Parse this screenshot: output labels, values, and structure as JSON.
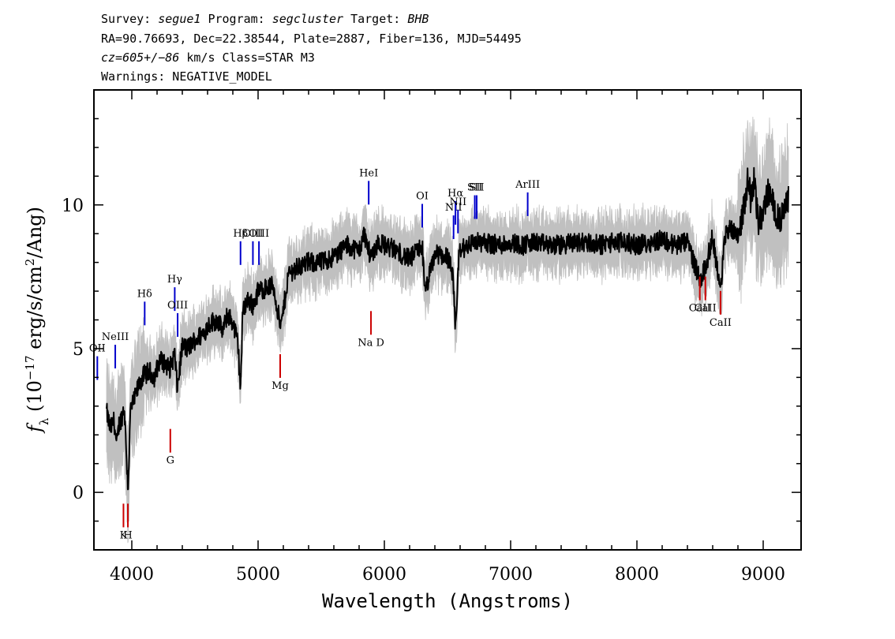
{
  "header": {
    "line1": [
      {
        "t": "Survey: ",
        "i": false
      },
      {
        "t": "segue1",
        "i": true
      },
      {
        "t": " Program: ",
        "i": false
      },
      {
        "t": "segcluster",
        "i": true
      },
      {
        "t": " Target: ",
        "i": false
      },
      {
        "t": "BHB",
        "i": true
      }
    ],
    "line2": "RA=90.76693, Dec=22.38544, Plate=2887, Fiber=136, MJD=54495",
    "line3": [
      {
        "t": "cz=605+/−86",
        "i": true
      },
      {
        "t": " km/s Class=STAR M3",
        "i": false
      }
    ],
    "line4": "Warnings: NEGATIVE_MODEL"
  },
  "chart_data": {
    "type": "line",
    "xlabel": "Wavelength (Angstroms)",
    "ylabel_parts": [
      "f",
      "λ",
      " (10",
      "−17",
      " erg/s/cm",
      "2",
      "/Ang)"
    ],
    "xlim": [
      3700,
      9300
    ],
    "ylim": [
      -2,
      14
    ],
    "xticks": [
      4000,
      5000,
      6000,
      7000,
      8000,
      9000
    ],
    "yticks": [
      0,
      5,
      10
    ],
    "grid": false,
    "colors": {
      "flux": "#000000",
      "noise_band": "#c0c0c0",
      "emission": "#0000cc",
      "absorption": "#cc0000"
    },
    "series": [
      {
        "role": "smoothed-flux",
        "x": [
          3800,
          3830,
          3860,
          3880,
          3900,
          3920,
          3940,
          3960,
          3970,
          3990,
          4020,
          4060,
          4100,
          4140,
          4180,
          4220,
          4260,
          4300,
          4340,
          4360,
          4400,
          4440,
          4500,
          4560,
          4620,
          4680,
          4720,
          4760,
          4800,
          4840,
          4861,
          4880,
          4920,
          4960,
          5000,
          5060,
          5120,
          5180,
          5240,
          5300,
          5400,
          5500,
          5600,
          5700,
          5800,
          5840,
          5890,
          5950,
          6000,
          6100,
          6200,
          6300,
          6320,
          6400,
          6500,
          6540,
          6563,
          6590,
          6650,
          6700,
          6800,
          6900,
          7000,
          7100,
          7200,
          7300,
          7400,
          7500,
          7600,
          7700,
          7800,
          7900,
          8000,
          8100,
          8200,
          8300,
          8400,
          8498,
          8542,
          8600,
          8662,
          8700,
          8750,
          8800,
          8830,
          8860,
          8880,
          8900,
          8930,
          8960,
          9000,
          9040,
          9080,
          9120,
          9160,
          9200
        ],
        "y": [
          2.8,
          2.2,
          2.5,
          1.6,
          2.4,
          2.6,
          3.0,
          1.1,
          0.1,
          2.9,
          3.2,
          3.8,
          4.1,
          4.2,
          4.0,
          4.6,
          4.5,
          4.3,
          4.8,
          3.6,
          5.1,
          5.0,
          5.3,
          5.5,
          5.9,
          6.0,
          5.6,
          6.2,
          5.9,
          5.2,
          3.6,
          6.4,
          6.7,
          6.5,
          7.0,
          7.1,
          7.2,
          5.7,
          7.6,
          7.8,
          8.0,
          8.0,
          8.2,
          8.6,
          8.4,
          9.0,
          8.2,
          8.7,
          8.6,
          8.4,
          8.1,
          8.6,
          6.9,
          8.3,
          8.2,
          7.6,
          5.6,
          8.3,
          8.6,
          8.7,
          8.7,
          8.6,
          8.7,
          8.6,
          8.7,
          8.6,
          8.6,
          8.7,
          8.7,
          8.6,
          8.7,
          8.7,
          8.6,
          8.7,
          8.8,
          8.6,
          8.7,
          7.4,
          7.8,
          8.9,
          7.0,
          9.0,
          9.2,
          9.0,
          9.5,
          10.2,
          11.1,
          10.2,
          10.9,
          9.4,
          9.7,
          10.5,
          10.0,
          9.5,
          9.6,
          10.3
        ]
      }
    ],
    "lines": [
      {
        "label": "OII",
        "x": 3727,
        "kind": "emission",
        "label_y": 4.9
      },
      {
        "label": "NeIII",
        "x": 3869,
        "kind": "emission",
        "label_y": 5.3
      },
      {
        "label": "Hδ",
        "x": 4102,
        "kind": "emission",
        "label_y": 6.8
      },
      {
        "label": "Hγ",
        "x": 4340,
        "kind": "emission",
        "label_y": 7.3
      },
      {
        "label": "OIII",
        "x": 4363,
        "kind": "emission",
        "label_y": 6.4
      },
      {
        "label": "Hβ",
        "x": 4861,
        "kind": "emission",
        "label_y": 8.9
      },
      {
        "label": "OIII",
        "x": 4959,
        "kind": "emission",
        "label_y": 8.9
      },
      {
        "label": "OIII",
        "x": 5007,
        "kind": "emission",
        "label_y": 8.9
      },
      {
        "label": "HeI",
        "x": 5876,
        "kind": "emission",
        "label_y": 11.0
      },
      {
        "label": "OI",
        "x": 6300,
        "kind": "emission",
        "label_y": 10.2
      },
      {
        "label": "NII",
        "x": 6548,
        "kind": "emission",
        "label_y": 9.8
      },
      {
        "label": "Hα",
        "x": 6563,
        "kind": "emission",
        "label_y": 10.3
      },
      {
        "label": "NII",
        "x": 6583,
        "kind": "emission",
        "label_y": 10.0
      },
      {
        "label": "SII",
        "x": 6716,
        "kind": "emission",
        "label_y": 10.5
      },
      {
        "label": "SII",
        "x": 6731,
        "kind": "emission",
        "label_y": 10.5
      },
      {
        "label": "ArIII",
        "x": 7135,
        "kind": "emission",
        "label_y": 10.6
      },
      {
        "label": "K",
        "x": 3934,
        "kind": "absorption",
        "label_y": -1.6
      },
      {
        "label": "H",
        "x": 3969,
        "kind": "absorption",
        "label_y": -1.6
      },
      {
        "label": "G",
        "x": 4305,
        "kind": "absorption",
        "label_y": 1.0
      },
      {
        "label": "Mg",
        "x": 5175,
        "kind": "absorption",
        "label_y": 3.6
      },
      {
        "label": "Na D",
        "x": 5894,
        "kind": "absorption",
        "label_y": 5.1
      },
      {
        "label": "CaII",
        "x": 8498,
        "kind": "absorption",
        "label_y": 6.3
      },
      {
        "label": "CaII",
        "x": 8542,
        "kind": "absorption",
        "label_y": 6.3
      },
      {
        "label": "CaII",
        "x": 8662,
        "kind": "absorption",
        "label_y": 5.8
      }
    ]
  }
}
